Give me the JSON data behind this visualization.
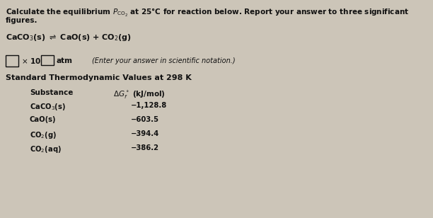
{
  "bg_color": "#ccc5b8",
  "text_color": "#111111",
  "title_line1": "Calculate the equilibrium $P_{\\mathrm{CO_2}}$ at 25°C for reaction below. Report your answer to three significant",
  "title_line2": "figures.",
  "reaction": "CaCO$_3$(s) $\\rightleftharpoons$ CaO(s) + CO$_2$(g)",
  "table_title": "Standard Thermodynamic Values at 298 K",
  "col1_header": "Substance",
  "col2_header": "$\\Delta G^\\circ_f$ (kJ/mol)",
  "substances": [
    "CaCO$_3$(s)",
    "CaO(s)",
    "CO$_2$(g)",
    "CO$_2$(aq)"
  ],
  "values": [
    "−1,128.8",
    "−603.5",
    "−394.4",
    "−386.2"
  ],
  "scientific_note": "(Enter your answer in scientific notation.)"
}
